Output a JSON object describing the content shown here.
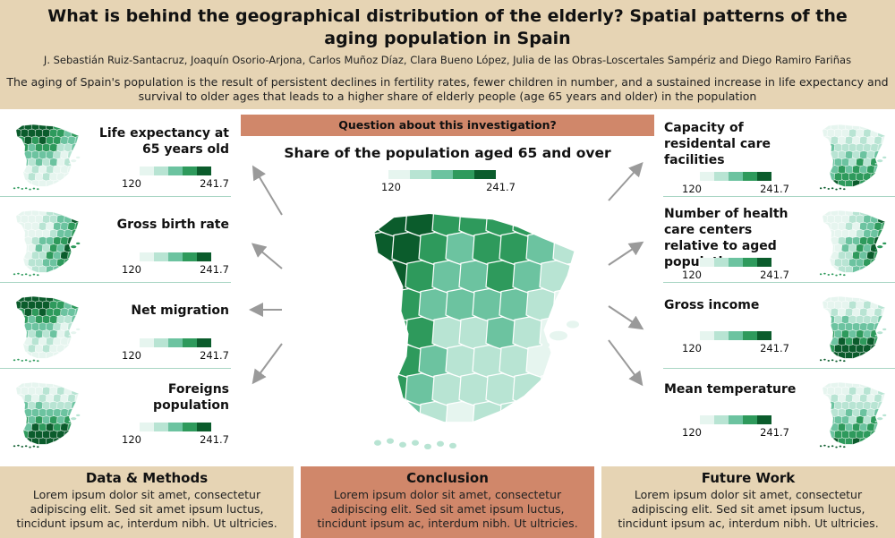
{
  "header": {
    "title": "What is behind the geographical distribution of the elderly? Spatial patterns of the aging population in Spain",
    "authors": "J. Sebastián Ruiz-Santacruz, Joaquín Osorio-Arjona, Carlos Muñoz Díaz, Clara Bueno López, Julia de las Obras-Loscertales Sampériz and Diego Ramiro Fariñas",
    "intro": "The aging of Spain's population is the result of persistent declines in fertility rates, fewer children in number, and a sustained increase in life expectancy and survival to older ages that leads to a higher share of elderly people (age 65 years and older) in the population"
  },
  "legend": {
    "min": "120",
    "max": "241.7",
    "colors": [
      "#e6f5ef",
      "#b8e4d3",
      "#6cc3a0",
      "#2e9a5c",
      "#0b5c2c"
    ]
  },
  "left_panels": [
    {
      "label": "Life expectancy at 65 years old",
      "map_style": "north-dark"
    },
    {
      "label": "Gross birth rate",
      "map_style": "east-dark"
    },
    {
      "label": "Net migration",
      "map_style": "north-dark"
    },
    {
      "label": "Foreigns population",
      "map_style": "south-dark"
    }
  ],
  "right_panels": [
    {
      "label": "Capacity of residental care facilities",
      "map_style": "south-mid"
    },
    {
      "label": "Number of health care centers relative to aged population",
      "map_style": "east-dark"
    },
    {
      "label": "Gross income",
      "map_style": "south-dark"
    },
    {
      "label": "Mean temperature",
      "map_style": "south-mid"
    }
  ],
  "center": {
    "question": "Question about this investigation?",
    "title": "Share of the population aged 65 and over"
  },
  "footer": {
    "data_methods": {
      "title": "Data & Methods",
      "text": "Lorem ipsum dolor sit amet, consectetur adipiscing elit. Sed sit amet ipsum luctus, tincidunt ipsum ac, interdum nibh. Ut ultricies."
    },
    "conclusion": {
      "title": "Conclusion",
      "text": "Lorem ipsum dolor sit amet, consectetur adipiscing elit. Sed sit amet ipsum luctus, tincidunt ipsum ac, interdum nibh. Ut ultricies."
    },
    "future_work": {
      "title": "Future Work",
      "text": "Lorem ipsum dolor sit amet, consectetur adipiscing elit. Sed sit amet ipsum luctus, tincidunt ipsum ac, interdum nibh. Ut ultricies."
    }
  },
  "colors": {
    "beige": "#e6d4b4",
    "terracotta": "#d0876a",
    "divider": "#a9d6c4",
    "arrow": "#9a9a9a"
  }
}
